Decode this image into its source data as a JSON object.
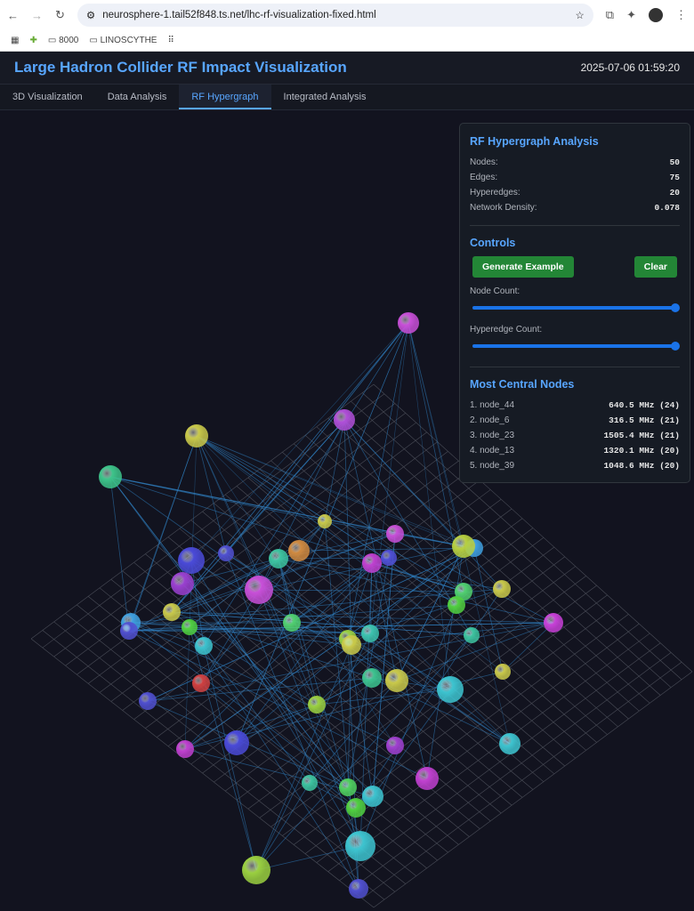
{
  "browser": {
    "url": "neurosphere-1.tail52f848.ts.net/lhc-rf-visualization-fixed.html",
    "bookmarks": [
      "8000",
      "LINOSCYTHE"
    ]
  },
  "header": {
    "title": "Large Hadron Collider RF Impact Visualization",
    "timestamp": "2025-07-06 01:59:20"
  },
  "tabs": [
    {
      "label": "3D Visualization"
    },
    {
      "label": "Data Analysis"
    },
    {
      "label": "RF Hypergraph",
      "active": true
    },
    {
      "label": "Integrated Analysis"
    }
  ],
  "panel": {
    "title": "RF Hypergraph Analysis",
    "stats": [
      {
        "label": "Nodes:",
        "value": "50"
      },
      {
        "label": "Edges:",
        "value": "75"
      },
      {
        "label": "Hyperedges:",
        "value": "20"
      },
      {
        "label": "Network Density:",
        "value": "0.078"
      }
    ],
    "controls_title": "Controls",
    "generate_label": "Generate Example",
    "clear_label": "Clear",
    "node_count_label": "Node Count:",
    "node_count_fraction": 1.0,
    "hyperedge_count_label": "Hyperedge Count:",
    "hyperedge_count_fraction": 1.0,
    "central_title": "Most Central Nodes",
    "central_nodes": [
      {
        "name": "1. node_44",
        "value": "640.5 MHz (24)"
      },
      {
        "name": "2. node_6",
        "value": "316.5 MHz (21)"
      },
      {
        "name": "3. node_23",
        "value": "1505.4 MHz (21)"
      },
      {
        "name": "4. node_13",
        "value": "1320.1 MHz (20)"
      },
      {
        "name": "5. node_39",
        "value": "1048.6 MHz (20)"
      }
    ]
  },
  "colors": {
    "accent": "#58a6ff",
    "button": "#238636",
    "slider": "#1a73e8",
    "edge": "#2f7fc0",
    "grid": "#4a4d58"
  }
}
